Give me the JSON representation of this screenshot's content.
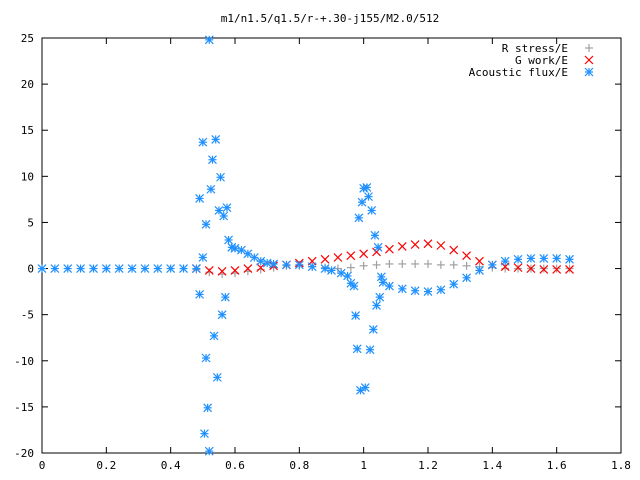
{
  "chart_data": {
    "type": "scatter",
    "title": "m1/n1.5/q1.5/r-+.30-j155/M2.0/512",
    "xlabel": "",
    "ylabel": "",
    "xlim": [
      0,
      1.8
    ],
    "ylim": [
      -20,
      25
    ],
    "xticks": [
      "0",
      "0.2",
      "0.4",
      "0.6",
      "0.8",
      "1",
      "1.2",
      "1.4",
      "1.6",
      "1.8"
    ],
    "yticks": [
      "-20",
      "-15",
      "-10",
      "-5",
      "0",
      "5",
      "10",
      "15",
      "20",
      "25"
    ],
    "legend_position": "top-right",
    "series": [
      {
        "name": "R stress/E",
        "marker": "plus",
        "color": "#a0a0a0",
        "points": [
          [
            0.48,
            -0.1
          ],
          [
            0.52,
            -0.4
          ],
          [
            0.56,
            -0.6
          ],
          [
            0.6,
            -0.5
          ],
          [
            0.64,
            -0.3
          ],
          [
            0.68,
            -0.1
          ],
          [
            0.72,
            0.1
          ],
          [
            0.76,
            0.3
          ],
          [
            0.8,
            0.3
          ],
          [
            0.84,
            0.2
          ],
          [
            0.88,
            0.1
          ],
          [
            0.92,
            0.0
          ],
          [
            0.96,
            0.1
          ],
          [
            1.0,
            0.3
          ],
          [
            1.04,
            0.4
          ],
          [
            1.08,
            0.5
          ],
          [
            1.12,
            0.5
          ],
          [
            1.16,
            0.5
          ],
          [
            1.2,
            0.5
          ],
          [
            1.24,
            0.4
          ],
          [
            1.28,
            0.4
          ],
          [
            1.32,
            0.3
          ],
          [
            1.36,
            0.2
          ],
          [
            1.4,
            0.1
          ],
          [
            1.44,
            0.0
          ],
          [
            1.48,
            0.0
          ],
          [
            1.52,
            0.0
          ],
          [
            1.56,
            0.0
          ],
          [
            1.6,
            0.0
          ],
          [
            1.64,
            0.0
          ]
        ]
      },
      {
        "name": "G work/E",
        "marker": "cross",
        "color": "#ff0000",
        "points": [
          [
            0.48,
            0.0
          ],
          [
            0.52,
            -0.2
          ],
          [
            0.56,
            -0.3
          ],
          [
            0.6,
            -0.2
          ],
          [
            0.64,
            0.0
          ],
          [
            0.68,
            0.1
          ],
          [
            0.72,
            0.3
          ],
          [
            0.76,
            0.4
          ],
          [
            0.8,
            0.6
          ],
          [
            0.84,
            0.8
          ],
          [
            0.88,
            1.0
          ],
          [
            0.92,
            1.2
          ],
          [
            0.96,
            1.4
          ],
          [
            1.0,
            1.6
          ],
          [
            1.04,
            1.8
          ],
          [
            1.08,
            2.1
          ],
          [
            1.12,
            2.4
          ],
          [
            1.16,
            2.6
          ],
          [
            1.2,
            2.7
          ],
          [
            1.24,
            2.5
          ],
          [
            1.28,
            2.0
          ],
          [
            1.32,
            1.4
          ],
          [
            1.36,
            0.8
          ],
          [
            1.4,
            0.4
          ],
          [
            1.44,
            0.2
          ],
          [
            1.48,
            0.1
          ],
          [
            1.52,
            0.0
          ],
          [
            1.56,
            -0.1
          ],
          [
            1.6,
            -0.1
          ],
          [
            1.64,
            -0.1
          ]
        ]
      },
      {
        "name": "Acoustic flux/E",
        "marker": "star",
        "color": "#1e90ff",
        "points": [
          [
            0.0,
            0.0
          ],
          [
            0.04,
            0.0
          ],
          [
            0.08,
            0.0
          ],
          [
            0.12,
            0.0
          ],
          [
            0.16,
            0.0
          ],
          [
            0.2,
            0.0
          ],
          [
            0.24,
            0.0
          ],
          [
            0.28,
            0.0
          ],
          [
            0.32,
            0.0
          ],
          [
            0.36,
            0.0
          ],
          [
            0.4,
            0.0
          ],
          [
            0.44,
            0.0
          ],
          [
            0.48,
            0.0
          ],
          [
            0.49,
            7.6
          ],
          [
            0.5,
            13.7
          ],
          [
            0.51,
            -9.7
          ],
          [
            0.515,
            -15.1
          ],
          [
            0.52,
            24.8
          ],
          [
            0.525,
            8.6
          ],
          [
            0.53,
            11.8
          ],
          [
            0.535,
            -7.3
          ],
          [
            0.54,
            14.0
          ],
          [
            0.545,
            -11.8
          ],
          [
            0.55,
            6.3
          ],
          [
            0.555,
            9.9
          ],
          [
            0.56,
            -5.0
          ],
          [
            0.565,
            5.7
          ],
          [
            0.57,
            -3.1
          ],
          [
            0.575,
            6.6
          ],
          [
            0.505,
            -17.9
          ],
          [
            0.52,
            -19.8
          ],
          [
            0.49,
            -2.8
          ],
          [
            0.5,
            1.2
          ],
          [
            0.51,
            4.8
          ],
          [
            0.58,
            3.1
          ],
          [
            0.59,
            2.3
          ],
          [
            0.6,
            2.2
          ],
          [
            0.62,
            2.0
          ],
          [
            0.64,
            1.6
          ],
          [
            0.66,
            1.2
          ],
          [
            0.68,
            0.8
          ],
          [
            0.7,
            0.6
          ],
          [
            0.72,
            0.5
          ],
          [
            0.76,
            0.4
          ],
          [
            0.8,
            0.4
          ],
          [
            0.84,
            0.2
          ],
          [
            0.88,
            0.0
          ],
          [
            0.9,
            -0.2
          ],
          [
            0.93,
            -0.5
          ],
          [
            0.95,
            -0.8
          ],
          [
            0.96,
            -1.6
          ],
          [
            0.97,
            -1.9
          ],
          [
            0.975,
            -5.1
          ],
          [
            0.98,
            -8.7
          ],
          [
            0.985,
            5.5
          ],
          [
            0.99,
            -13.2
          ],
          [
            0.995,
            7.2
          ],
          [
            1.0,
            8.7
          ],
          [
            1.005,
            -12.9
          ],
          [
            1.01,
            8.8
          ],
          [
            1.015,
            7.8
          ],
          [
            1.02,
            -8.8
          ],
          [
            1.025,
            6.3
          ],
          [
            1.03,
            -6.6
          ],
          [
            1.035,
            3.6
          ],
          [
            1.04,
            -4.0
          ],
          [
            1.045,
            2.3
          ],
          [
            1.05,
            -3.1
          ],
          [
            1.055,
            -0.9
          ],
          [
            1.06,
            -1.5
          ],
          [
            1.08,
            -1.9
          ],
          [
            1.12,
            -2.2
          ],
          [
            1.16,
            -2.4
          ],
          [
            1.2,
            -2.5
          ],
          [
            1.24,
            -2.3
          ],
          [
            1.28,
            -1.7
          ],
          [
            1.32,
            -1.0
          ],
          [
            1.36,
            -0.2
          ],
          [
            1.4,
            0.4
          ],
          [
            1.44,
            0.8
          ],
          [
            1.48,
            1.0
          ],
          [
            1.52,
            1.1
          ],
          [
            1.56,
            1.1
          ],
          [
            1.6,
            1.1
          ],
          [
            1.64,
            1.0
          ]
        ]
      }
    ]
  }
}
